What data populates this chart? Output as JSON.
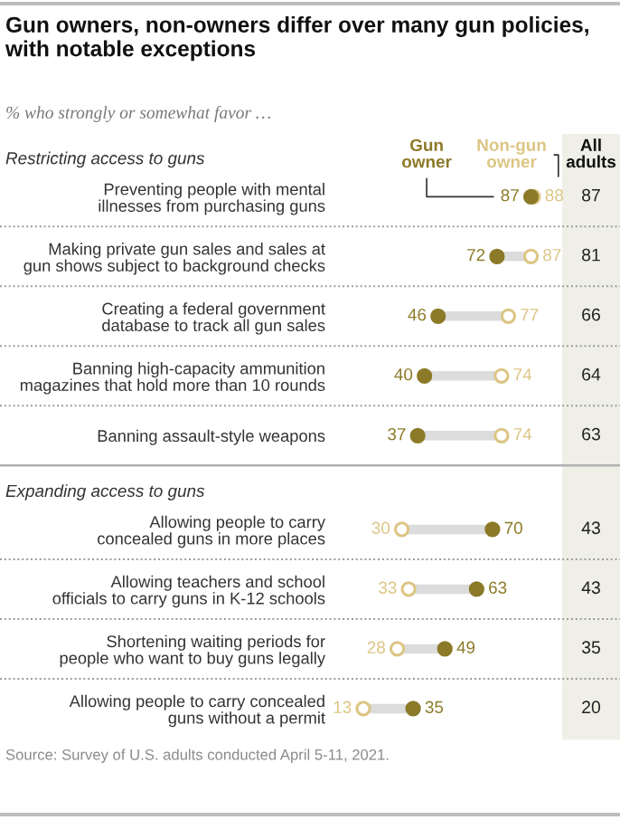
{
  "chart_data": [
    {
      "type": "scatter",
      "orientation": "horizontal",
      "title": "Gun owners, non-owners differ over many gun policies,\nwith notable exceptions",
      "subtitle": "% who strongly or somewhat favor …",
      "ylabel": "Restricting access to guns",
      "categories": [
        "Preventing people with mental\nillnesses from purchasing guns",
        "Making private gun sales and sales at\ngun shows subject to background checks",
        "Creating a federal government\ndatabase to track all gun sales",
        "Banning high-capacity ammunition\nmagazines that hold more than 10 rounds",
        "Banning assault-style weapons"
      ],
      "series": [
        {
          "name": "Gun\nowner",
          "color": "#8c7a28",
          "values": [
            87,
            72,
            46,
            40,
            37
          ]
        },
        {
          "name": "Non-gun\nowner",
          "color": "#dcc584",
          "values": [
            88,
            87,
            77,
            74,
            74
          ]
        }
      ],
      "marker": "circle",
      "data_labels": true,
      "legend": "top"
    },
    {
      "type": "other",
      "title": "All\nadults",
      "values": [
        87,
        81,
        66,
        64,
        63
      ],
      "data_labels": true
    },
    {
      "type": "scatter",
      "orientation": "horizontal",
      "ylabel": "Expanding access to guns",
      "categories": [
        "Allowing people to carry\nconcealed guns in more places",
        "Allowing teachers and school\nofficials to carry guns in K-12 schools",
        "Shortening waiting periods for\npeople who want to buy guns legally",
        "Allowing people to carry concealed\nguns without a permit"
      ],
      "series": [
        {
          "color": "#8c7a28",
          "values": [
            70,
            63,
            49,
            35
          ]
        },
        {
          "color": "#dcc584",
          "values": [
            30,
            33,
            28,
            13
          ]
        }
      ],
      "marker": "circle",
      "data_labels": true,
      "annotations": [
        "Source: Survey of U.S. adults conducted April 5-11, 2021."
      ]
    },
    {
      "type": "other",
      "values": [
        43,
        43,
        35,
        20
      ],
      "data_labels": true
    }
  ]
}
